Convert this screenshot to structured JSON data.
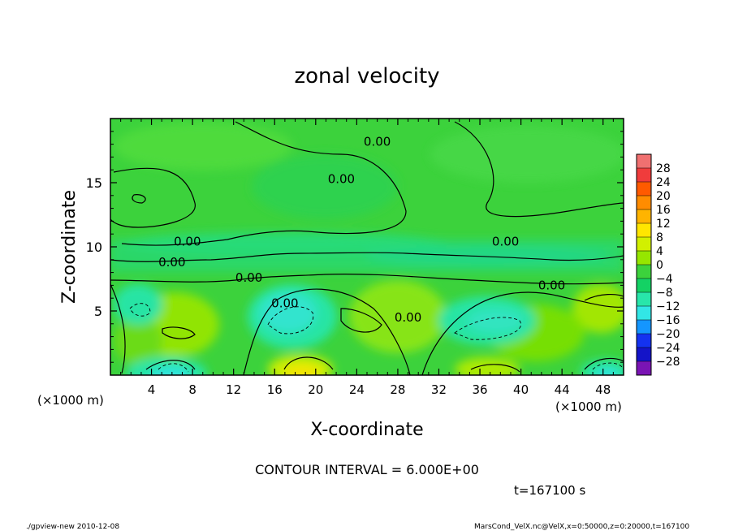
{
  "chart_data": {
    "type": "heatmap",
    "title": "zonal velocity",
    "xlabel": "X-coordinate",
    "ylabel": "Z-coordinate",
    "x_unit_label": "(×1000 m)",
    "y_unit_label": "(×1000 m)",
    "xlim": [
      0,
      50
    ],
    "ylim": [
      0,
      20
    ],
    "x_ticks": [
      4,
      8,
      12,
      16,
      20,
      24,
      28,
      32,
      36,
      40,
      44,
      48
    ],
    "y_ticks": [
      5,
      10,
      15
    ],
    "colorbar": {
      "labels": [
        "28",
        "24",
        "20",
        "16",
        "12",
        "8",
        "4",
        "0",
        "−4",
        "−8",
        "−12",
        "−16",
        "−20",
        "−24",
        "−28"
      ],
      "colors": [
        "#f07070",
        "#f03c3c",
        "#ff5a00",
        "#ff8c00",
        "#ffb400",
        "#ffe600",
        "#d2f000",
        "#96e600",
        "#3cd23c",
        "#14d264",
        "#28e6aa",
        "#32e6e6",
        "#1496ff",
        "#1432f0",
        "#1414c8",
        "#7a14b4"
      ]
    },
    "contour_interval_text": "CONTOUR INTERVAL = 6.000E+00",
    "contour_labels": [
      {
        "text": "0.00",
        "x": 26.0,
        "z": 18.2
      },
      {
        "text": "0.00",
        "x": 22.5,
        "z": 15.3
      },
      {
        "text": "0.00",
        "x": 7.5,
        "z": 10.4
      },
      {
        "text": "0.00",
        "x": 6.0,
        "z": 8.8
      },
      {
        "text": "0.00",
        "x": 13.5,
        "z": 7.6
      },
      {
        "text": "0.00",
        "x": 17.0,
        "z": 5.6
      },
      {
        "text": "0.00",
        "x": 29.0,
        "z": 4.5
      },
      {
        "text": "0.00",
        "x": 38.5,
        "z": 10.4
      },
      {
        "text": "0.00",
        "x": 43.0,
        "z": 7.0
      }
    ],
    "grid": false
  },
  "time_label": "t=167100 s",
  "footer": {
    "left": "./gpview-new  2010-12-08",
    "right": "MarsCond_VelX.nc@VelX,x=0:50000,z=0:20000,t=167100"
  }
}
